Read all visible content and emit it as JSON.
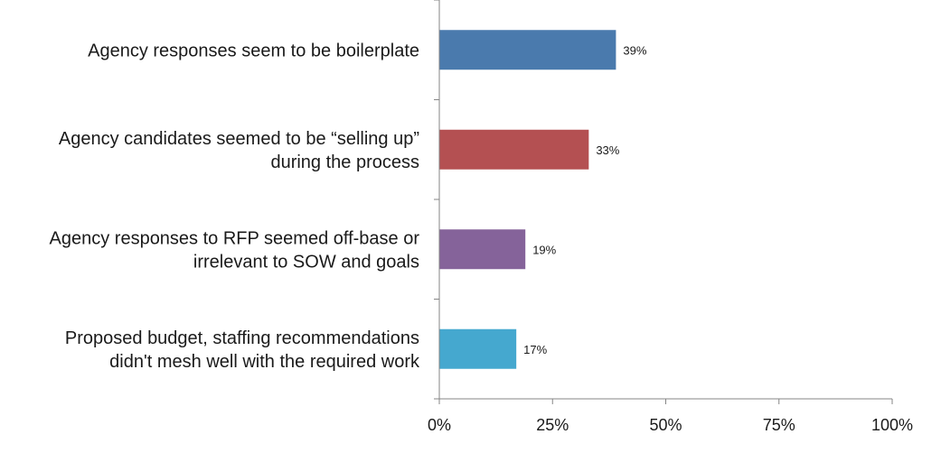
{
  "chart_data": {
    "type": "bar",
    "orientation": "horizontal",
    "title": "",
    "xlabel": "",
    "ylabel": "",
    "xlim": [
      0,
      100
    ],
    "grid": false,
    "legend": "none",
    "x_ticks": [
      "0%",
      "25%",
      "50%",
      "75%",
      "100%"
    ],
    "x_tick_values": [
      0,
      25,
      50,
      75,
      100
    ],
    "categories": [
      [
        "Agency responses seem to be boilerplate"
      ],
      [
        "Agency candidates seemed to be “selling up”",
        "during the process"
      ],
      [
        "Agency responses to RFP seemed off-base or",
        "irrelevant to SOW and goals"
      ],
      [
        "Proposed budget, staffing recommendations",
        "didn't mesh well with the required work"
      ]
    ],
    "values": [
      39,
      33,
      19,
      17
    ],
    "data_labels": [
      "39%",
      "33%",
      "19%",
      "17%"
    ],
    "colors": [
      "#4a7aad",
      "#b45052",
      "#85639a",
      "#45a8cf"
    ]
  }
}
